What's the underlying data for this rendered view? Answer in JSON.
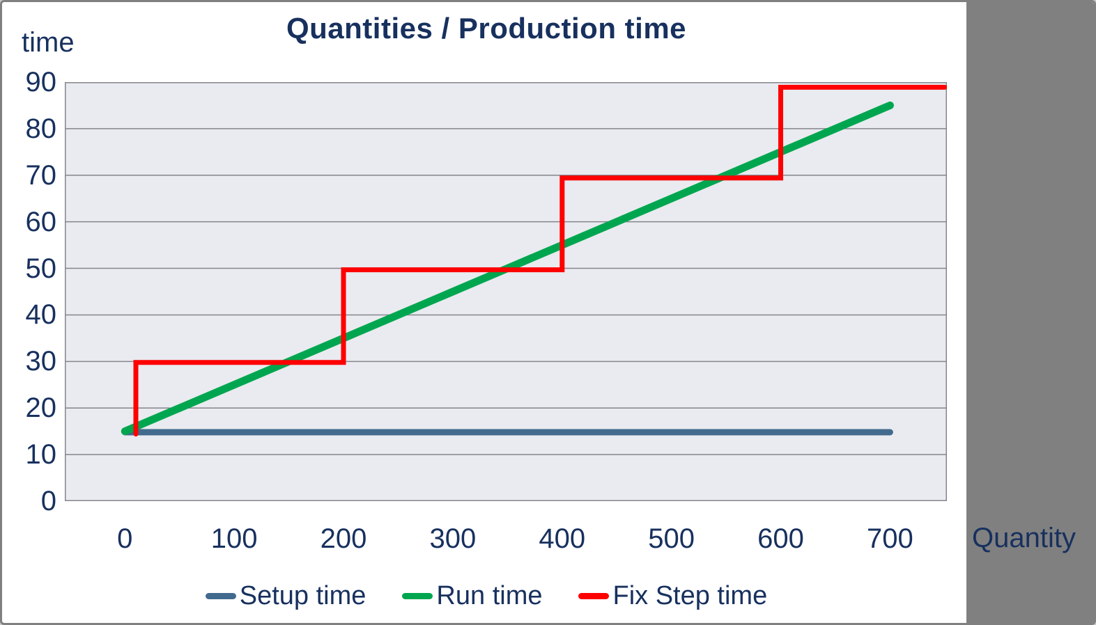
{
  "window": {
    "background": "#FFFFFF",
    "outer_border_color": "#808080",
    "side_band_color": "#808080"
  },
  "chart_data": {
    "type": "line",
    "title": "Quantities / Production time",
    "y_axis_title": "time",
    "x_axis_title": "Quantity",
    "x_ticks": [
      0,
      100,
      200,
      300,
      400,
      500,
      600,
      700
    ],
    "y_ticks": [
      0,
      10,
      20,
      30,
      40,
      50,
      60,
      70,
      80,
      90
    ],
    "xlim": [
      -55,
      752
    ],
    "ylim": [
      0,
      90
    ],
    "grid": "horizontal-only",
    "legend_position": "bottom",
    "plot_fill": "#E9EBF0",
    "grid_color": "#84868C",
    "text_color": "#17305E",
    "series": [
      {
        "name": "Setup time",
        "color": "#426A8E",
        "stroke_width": 9,
        "points": [
          [
            0,
            14.8
          ],
          [
            700,
            14.8
          ]
        ]
      },
      {
        "name": "Run time",
        "color": "#00A64F",
        "stroke_width": 11,
        "points": [
          [
            0,
            15
          ],
          [
            700,
            85
          ]
        ]
      },
      {
        "name": "Fix Step time",
        "color": "#FE0000",
        "stroke_width": 7,
        "points": [
          [
            10,
            14.4
          ],
          [
            10,
            29.8
          ],
          [
            200,
            29.8
          ],
          [
            200,
            49.7
          ],
          [
            400,
            49.7
          ],
          [
            400,
            69.4
          ],
          [
            600,
            69.4
          ],
          [
            600,
            88.9
          ],
          [
            750,
            88.9
          ]
        ]
      }
    ]
  }
}
